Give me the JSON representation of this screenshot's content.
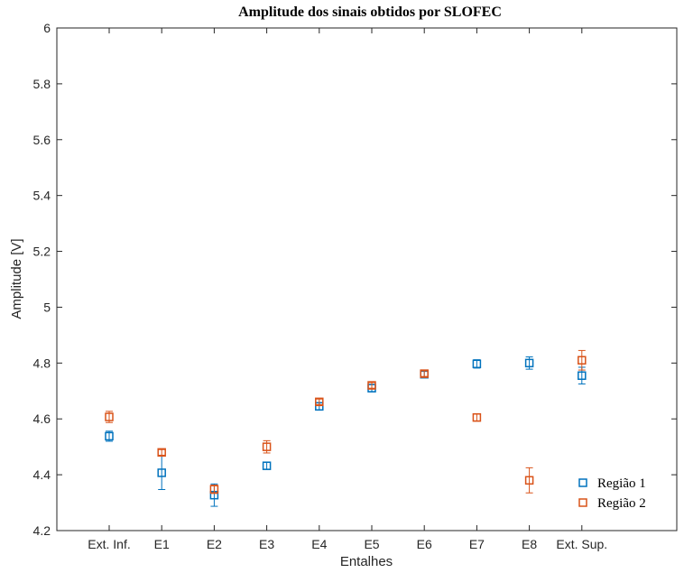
{
  "chart_data": {
    "type": "scatter",
    "title": "Amplitude dos sinais obtidos por SLOFEC",
    "xlabel": "Entalhes",
    "ylabel": "Amplitude [V]",
    "categories": [
      "Ext. Inf.",
      "E1",
      "E2",
      "E3",
      "E4",
      "E5",
      "E6",
      "E7",
      "E8",
      "Ext. Sup."
    ],
    "ylim": [
      4.2,
      6.0
    ],
    "yticks": [
      "4.2",
      "4.4",
      "4.6",
      "4.8",
      "5",
      "5.2",
      "5.4",
      "5.6",
      "5.8",
      "6"
    ],
    "grid": false,
    "error_bars": true,
    "legend_position": "bottom-right",
    "series": [
      {
        "name": "Região 1",
        "color": "#0072BD",
        "marker": "square",
        "values": [
          4.538,
          4.407,
          4.327,
          4.432,
          4.645,
          4.71,
          4.76,
          4.797,
          4.8,
          4.755
        ],
        "errors": [
          0.018,
          0.06,
          0.04,
          0.012,
          0.012,
          0.012,
          0.01,
          0.015,
          0.022,
          0.03
        ]
      },
      {
        "name": "Região 2",
        "color": "#D95319",
        "marker": "square",
        "values": [
          4.607,
          4.48,
          4.348,
          4.5,
          4.661,
          4.72,
          4.762,
          4.605,
          4.38,
          4.81
        ],
        "errors": [
          0.02,
          0.01,
          0.015,
          0.022,
          0.01,
          0.01,
          0.01,
          0.012,
          0.045,
          0.035
        ]
      }
    ]
  }
}
